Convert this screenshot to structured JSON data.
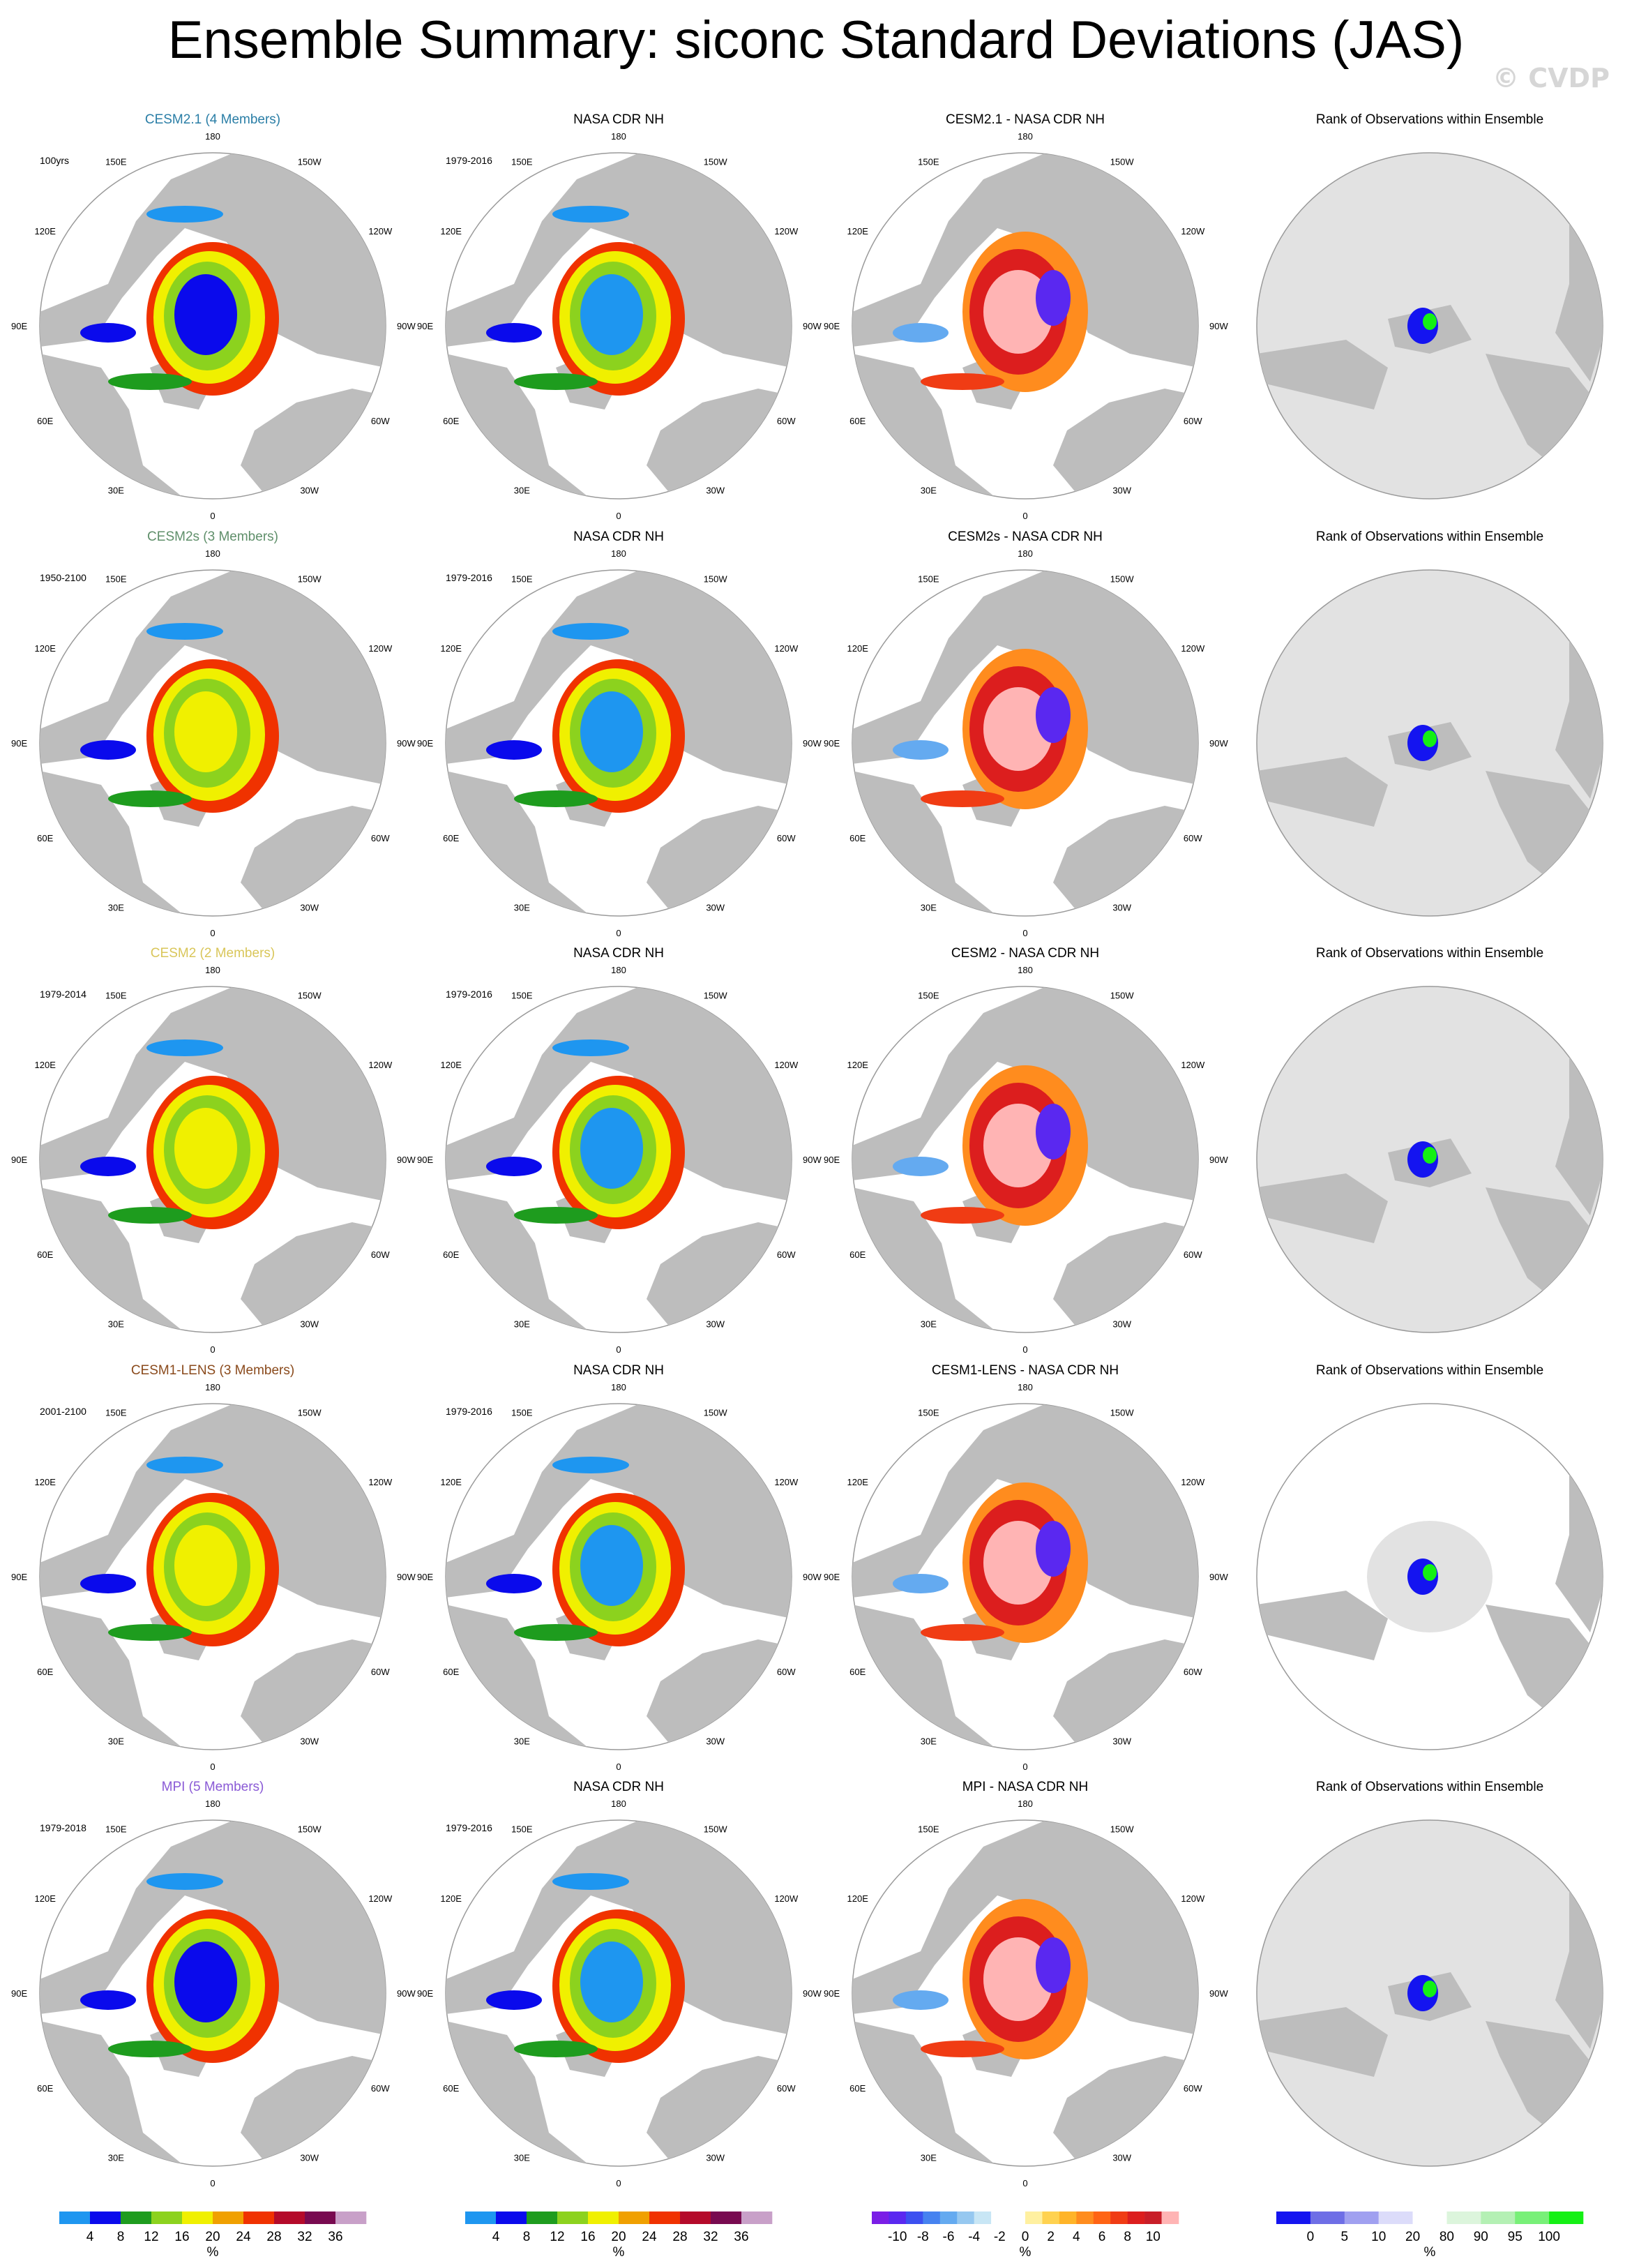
{
  "title": "Ensemble Summary: siconc Standard Deviations (JAS)",
  "watermark": "© CVDP",
  "lon_labels": [
    "180",
    "150E",
    "120E",
    "90E",
    "60E",
    "30E",
    "0",
    "30W",
    "60W",
    "90W",
    "120W",
    "150W"
  ],
  "colors": {
    "land": "#bdbdbd",
    "ocean": "#ffffff",
    "rank_background": "#e2e2e2"
  },
  "chart_data": [
    {
      "type": "heatmap",
      "rows": [
        {
          "model_title": "CESM2.1 (4 Members)",
          "model_color": "#2a7ea6",
          "model_period": "100yrs",
          "obs_title": "NASA CDR NH",
          "obs_period": "1979-2016",
          "diff_title": "CESM2.1 - NASA CDR NH",
          "rank_title": "Rank of Observations within Ensemble"
        },
        {
          "model_title": "CESM2s (3 Members)",
          "model_color": "#5f8f6a",
          "model_period": "1950-2100",
          "obs_title": "NASA CDR NH",
          "obs_period": "1979-2016",
          "diff_title": "CESM2s - NASA CDR NH",
          "rank_title": "Rank of Observations within Ensemble"
        },
        {
          "model_title": "CESM2 (2 Members)",
          "model_color": "#d9c65a",
          "model_period": "1979-2014",
          "obs_title": "NASA CDR NH",
          "obs_period": "1979-2016",
          "diff_title": "CESM2 - NASA CDR NH",
          "rank_title": "Rank of Observations within Ensemble"
        },
        {
          "model_title": "CESM1-LENS (3 Members)",
          "model_color": "#8a4a1c",
          "model_period": "2001-2100",
          "obs_title": "NASA CDR NH",
          "obs_period": "1979-2016",
          "diff_title": "CESM1-LENS - NASA CDR NH",
          "rank_title": "Rank of Observations within Ensemble"
        },
        {
          "model_title": "MPI (5 Members)",
          "model_color": "#8a5ad6",
          "model_period": "1979-2018",
          "obs_title": "NASA CDR NH",
          "obs_period": "1979-2016",
          "diff_title": "MPI - NASA CDR NH",
          "rank_title": "Rank of Observations within Ensemble"
        }
      ],
      "colorbars": [
        {
          "unit": "%",
          "tick_labels": [
            "4",
            "8",
            "12",
            "16",
            "20",
            "24",
            "28",
            "32",
            "36"
          ],
          "colors": [
            "#1e96f0",
            "#0a0aec",
            "#1e9c1e",
            "#8cd21e",
            "#f0f000",
            "#f0a000",
            "#f03200",
            "#b40a2a",
            "#780a50",
            "#c8a0c8"
          ]
        },
        {
          "unit": "%",
          "tick_labels": [
            "4",
            "8",
            "12",
            "16",
            "20",
            "24",
            "28",
            "32",
            "36"
          ],
          "colors": [
            "#1e96f0",
            "#0a0aec",
            "#1e9c1e",
            "#8cd21e",
            "#f0f000",
            "#f0a000",
            "#f03200",
            "#b40a2a",
            "#780a50",
            "#c8a0c8"
          ]
        },
        {
          "unit": "%",
          "tick_labels": [
            "-10",
            "-8",
            "-6",
            "-4",
            "-2",
            "0",
            "2",
            "4",
            "6",
            "8",
            "10"
          ],
          "colors": [
            "#7a1ee6",
            "#5a28f0",
            "#3c50f0",
            "#4682f0",
            "#64aaf0",
            "#96c8f0",
            "#c8e6f5",
            "#ffffff",
            "#ffffff",
            "#fff0a0",
            "#ffd250",
            "#ffb428",
            "#ff8c1e",
            "#ff6414",
            "#f03c14",
            "#dc1e1e",
            "#c81e28",
            "#ffb4b4"
          ]
        },
        {
          "unit": "%",
          "tick_labels": [
            "0",
            "5",
            "10",
            "20",
            "80",
            "90",
            "95",
            "100"
          ],
          "colors": [
            "#1414f0",
            "#6e6ee6",
            "#a0a0f0",
            "#dcdcfa",
            "#ffffff",
            "#dcf5dc",
            "#b4f0b4",
            "#78f078",
            "#14f014"
          ]
        }
      ]
    }
  ]
}
